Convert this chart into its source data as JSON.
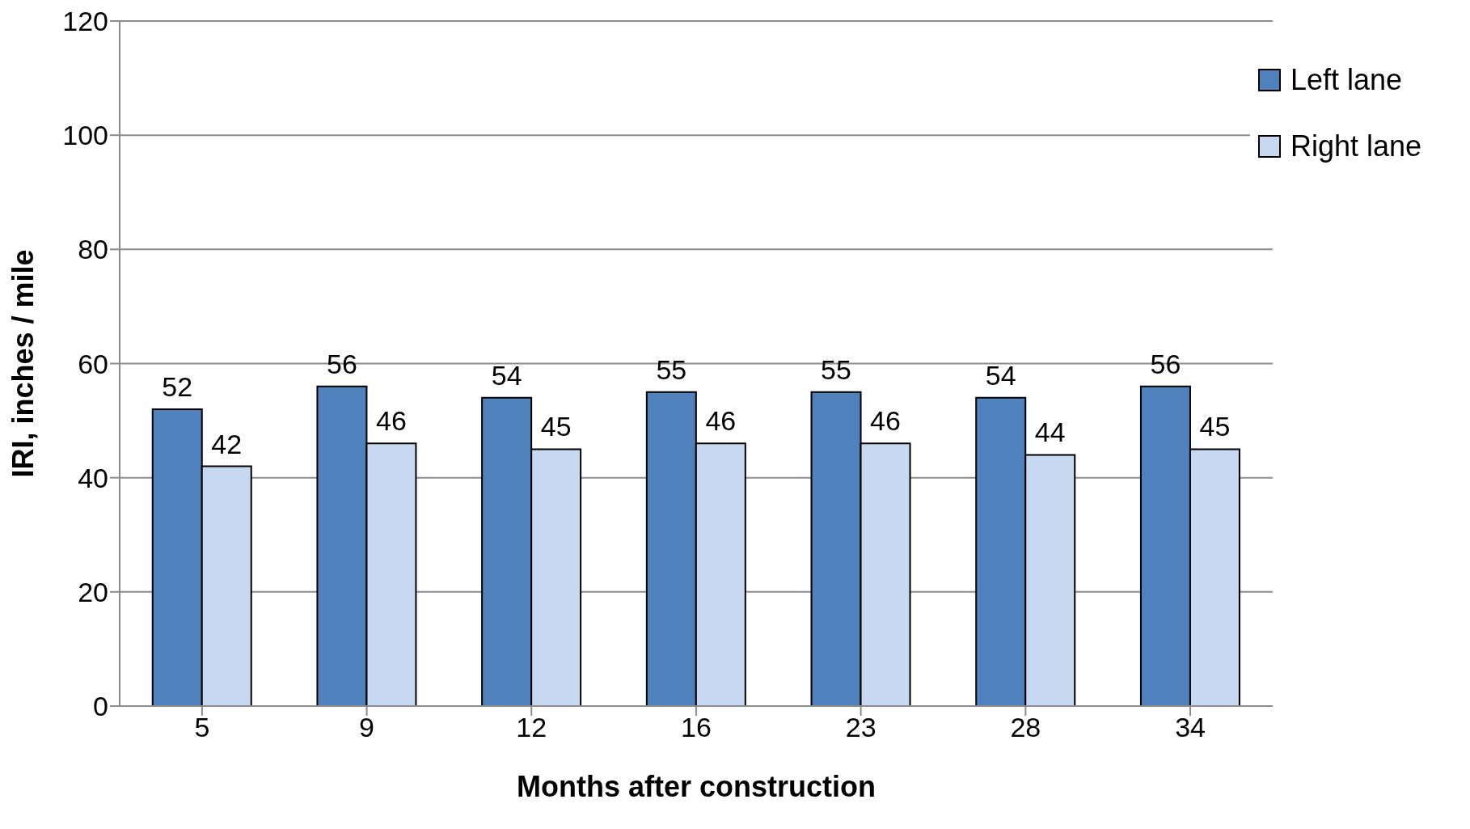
{
  "chart_data": {
    "type": "bar",
    "xlabel": "Months after construction",
    "ylabel": "IRI, inches / mile",
    "categories": [
      "5",
      "9",
      "12",
      "16",
      "23",
      "28",
      "34"
    ],
    "series": [
      {
        "name": "Left lane",
        "color": "#4f81bd",
        "values": [
          52,
          56,
          54,
          55,
          55,
          54,
          56
        ]
      },
      {
        "name": "Right lane",
        "color": "#c6d9f0",
        "values": [
          42,
          46,
          45,
          46,
          46,
          44,
          45
        ]
      }
    ],
    "ylim": [
      0,
      120
    ],
    "yticks": [
      0,
      20,
      40,
      60,
      80,
      100,
      120
    ],
    "grid": "y",
    "legend": "top right",
    "data_labels": true
  }
}
